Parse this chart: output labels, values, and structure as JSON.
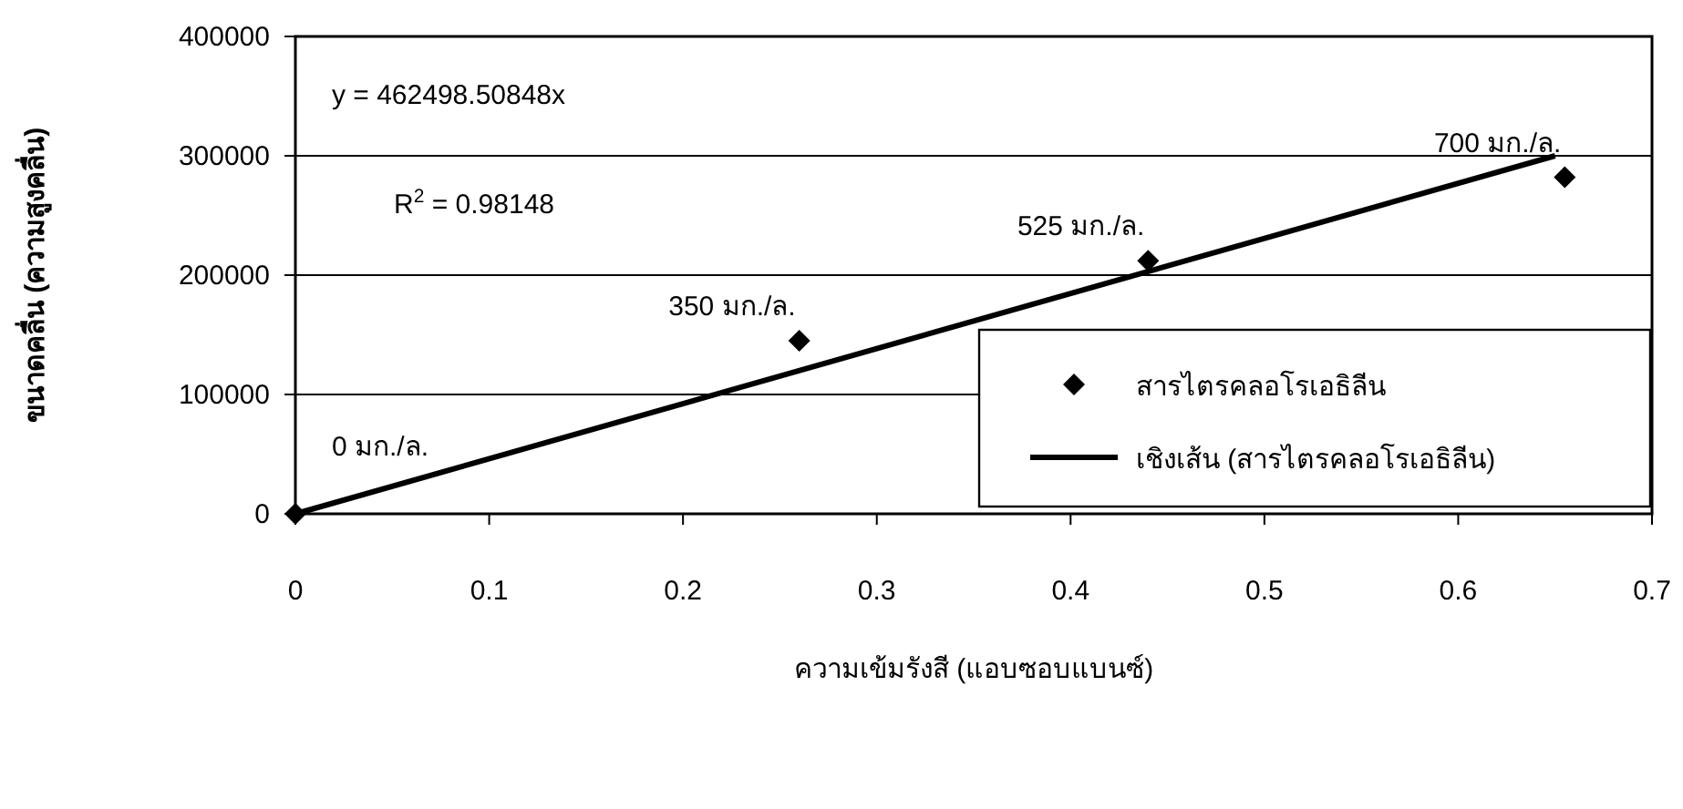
{
  "chart_data": {
    "type": "scatter",
    "xlabel": "ความเข้มรังสี (แอบซอบแบนซ์)",
    "ylabel": "ขนาดคลื่น (ความสูงคลื่น)",
    "xlim": [
      0,
      0.7
    ],
    "ylim": [
      0,
      400000
    ],
    "xticks": [
      0,
      0.1,
      0.2,
      0.3,
      0.4,
      0.5,
      0.6,
      0.7
    ],
    "yticks": [
      0,
      100000,
      200000,
      300000,
      400000
    ],
    "grid": "y",
    "legend": "bottom right",
    "marker": "diamond",
    "series": [
      {
        "name": "สารไตรคลอโรเอธิลีน",
        "color": "#000000",
        "x": [
          0,
          0.26,
          0.44,
          0.655
        ],
        "values": [
          0,
          145000,
          212000,
          282000
        ]
      },
      {
        "name": "เชิงเส้น (สารไตรคลอโรเอธิลีน)",
        "type": "line",
        "color": "#000000",
        "marker": "none",
        "line_style": "solid",
        "x": [
          0,
          0.65
        ],
        "values": [
          0,
          300000
        ]
      }
    ],
    "annotations": [
      "y = 462498.50848x",
      "R$^{2}$ = 0.98148",
      {
        "text": "0 มก./ล.",
        "x": 0,
        "y": 0
      },
      {
        "text": "350 มก./ล.",
        "x": 0.26,
        "y": 145000
      },
      {
        "text": "525 มก./ล.",
        "x": 0.44,
        "y": 212000
      },
      {
        "text": "700 มก./ล.",
        "x": 0.655,
        "y": 282000
      }
    ]
  }
}
